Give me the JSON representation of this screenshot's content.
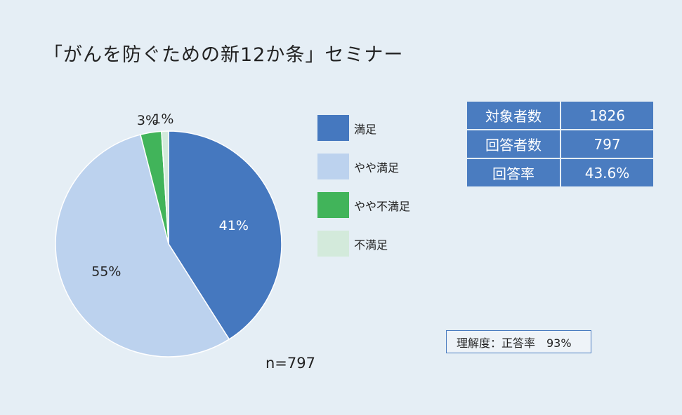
{
  "title": "「がんを防ぐための新12か条」セミナー",
  "chart_data": {
    "type": "pie",
    "categories": [
      "満足",
      "やや満足",
      "やや不満足",
      "不満足"
    ],
    "values": [
      41,
      55,
      3,
      1
    ],
    "labels": [
      "41%",
      "55%",
      "3%",
      "1%"
    ],
    "colors": [
      "#4578bf",
      "#bcd2ee",
      "#41b45a",
      "#d3eadb"
    ],
    "legend_position": "right",
    "annotation": "n=797"
  },
  "stats": [
    {
      "key": "対象者数",
      "value": "1826"
    },
    {
      "key": "回答者数",
      "value": "797"
    },
    {
      "key": "回答率",
      "value": "43.6%"
    }
  ],
  "quiz": "理解度：正答率　93%"
}
